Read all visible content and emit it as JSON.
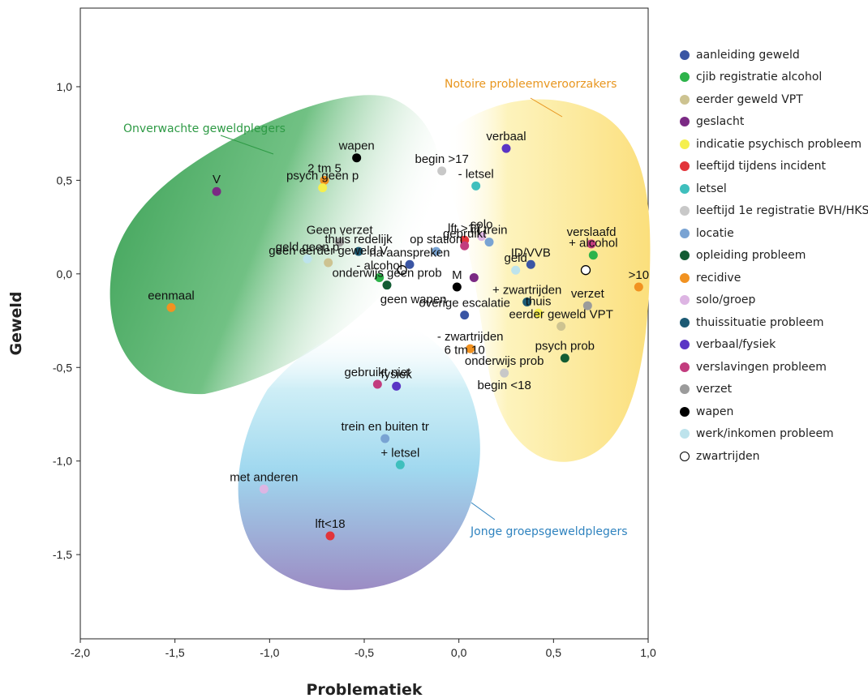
{
  "chart_data": {
    "type": "scatter",
    "xlabel": "Problematiek",
    "ylabel": "Geweld",
    "xlim": [
      -2.0,
      1.0
    ],
    "ylim": [
      -1.95,
      1.42
    ],
    "xticks": [
      -2.0,
      -1.5,
      -1.0,
      -0.5,
      0.0,
      0.5,
      1.0
    ],
    "yticks": [
      -1.5,
      -1.0,
      -0.5,
      0.0,
      0.5,
      1.0
    ],
    "xtick_labels": [
      "-2,0",
      "-1,5",
      "-1,0",
      "-0,5",
      "0,0",
      "0,5",
      "1,0"
    ],
    "ytick_labels": [
      "-1,5",
      "-1,0",
      "-0,5",
      "0,0",
      "0,5",
      "1,0"
    ],
    "grid": false,
    "legend_position": "right",
    "categories": [
      {
        "name": "aanleiding geweld",
        "color": "#3a55a4"
      },
      {
        "name": "cjib registratie alcohol",
        "color": "#2db34a"
      },
      {
        "name": "eerder geweld VPT",
        "color": "#cdc391"
      },
      {
        "name": "geslacht",
        "color": "#7b2a84"
      },
      {
        "name": "indicatie psychisch probleem",
        "color": "#f5ef4d"
      },
      {
        "name": "leeftijd tijdens incident",
        "color": "#e2343a"
      },
      {
        "name": "letsel",
        "color": "#3fbfbd"
      },
      {
        "name": "leeftijd 1e registratie BVH/HKS",
        "color": "#c8c8c8"
      },
      {
        "name": "locatie",
        "color": "#79a3d3"
      },
      {
        "name": "opleiding probleem",
        "color": "#125c33"
      },
      {
        "name": "recidive",
        "color": "#f19221"
      },
      {
        "name": "solo/groep",
        "color": "#ddb5e3"
      },
      {
        "name": "thuissituatie probleem",
        "color": "#1c5a74"
      },
      {
        "name": "verbaal/fysiek",
        "color": "#5a35c5"
      },
      {
        "name": "verslavingen probleem",
        "color": "#c23c7e"
      },
      {
        "name": "verzet",
        "color": "#9b9b9b"
      },
      {
        "name": "wapen",
        "color": "#000000"
      },
      {
        "name": "werk/inkomen probleem",
        "color": "#bde3ec"
      },
      {
        "name": "zwartrijden",
        "color": "#ffffff",
        "outline": "#000000"
      }
    ],
    "points": [
      {
        "label": "wapen",
        "x": -0.54,
        "y": 0.62,
        "cat": 16
      },
      {
        "label": "2 tm 5",
        "x": -0.71,
        "y": 0.5,
        "cat": 10
      },
      {
        "label": "V",
        "x": -1.28,
        "y": 0.44,
        "cat": 3
      },
      {
        "label": "psych geen p",
        "x": -0.72,
        "y": 0.46,
        "cat": 4
      },
      {
        "label": "begin >17",
        "x": -0.09,
        "y": 0.55,
        "cat": 7
      },
      {
        "label": "- letsel",
        "x": 0.09,
        "y": 0.47,
        "cat": 6
      },
      {
        "label": "verbaal",
        "x": 0.25,
        "y": 0.67,
        "cat": 13
      },
      {
        "label": "solo",
        "x": 0.12,
        "y": 0.2,
        "cat": 11
      },
      {
        "label": "Geen verzet",
        "x": -0.63,
        "y": 0.17,
        "cat": 15
      },
      {
        "label": "op station",
        "x": -0.12,
        "y": 0.12,
        "cat": 8
      },
      {
        "label": "lft >17",
        "x": 0.03,
        "y": 0.18,
        "cat": 5
      },
      {
        "label": "in trein",
        "x": 0.16,
        "y": 0.17,
        "cat": 8
      },
      {
        "label": "thuis redelijk",
        "x": -0.53,
        "y": 0.12,
        "cat": 12
      },
      {
        "label": "geld geen p",
        "x": -0.8,
        "y": 0.08,
        "cat": 17
      },
      {
        "label": "geen eerder geweld V",
        "x": -0.69,
        "y": 0.06,
        "cat": 2
      },
      {
        "label": "gebruikt",
        "x": 0.03,
        "y": 0.15,
        "cat": 14
      },
      {
        "label": "na aanspreken",
        "x": -0.26,
        "y": 0.05,
        "cat": 0
      },
      {
        "label": "",
        "x": -0.3,
        "y": 0.02,
        "cat": 18
      },
      {
        "label": "geld",
        "x": 0.3,
        "y": 0.02,
        "cat": 17
      },
      {
        "label": "ID/VVB",
        "x": 0.38,
        "y": 0.05,
        "cat": 0
      },
      {
        "label": "+ alcohol",
        "x": 0.71,
        "y": 0.1,
        "cat": 1
      },
      {
        "label": "verslaafd",
        "x": 0.7,
        "y": 0.16,
        "cat": 14
      },
      {
        "label": "",
        "x": 0.67,
        "y": 0.02,
        "cat": 18
      },
      {
        "label": ">10",
        "x": 0.95,
        "y": -0.07,
        "cat": 10
      },
      {
        "label": "eenmaal",
        "x": -1.52,
        "y": -0.18,
        "cat": 10
      },
      {
        "label": "- alcohol",
        "x": -0.42,
        "y": -0.02,
        "cat": 1
      },
      {
        "label": "onderwijs geen prob",
        "x": -0.38,
        "y": -0.06,
        "cat": 9
      },
      {
        "label": "M",
        "x": -0.01,
        "y": -0.07,
        "cat": 16
      },
      {
        "label": "",
        "x": 0.08,
        "y": -0.02,
        "cat": 3
      },
      {
        "label": "+ zwartrijden",
        "x": 0.36,
        "y": -0.15,
        "cat": 12
      },
      {
        "label": "thuis",
        "x": 0.42,
        "y": -0.21,
        "cat": 4
      },
      {
        "label": "verzet",
        "x": 0.68,
        "y": -0.17,
        "cat": 15
      },
      {
        "label": "overige escalatie",
        "x": 0.03,
        "y": -0.22,
        "cat": 0
      },
      {
        "label": "eerder geweld VPT",
        "x": 0.54,
        "y": -0.28,
        "cat": 2
      },
      {
        "label": "- zwartrijden",
        "x": 0.06,
        "y": -0.4,
        "cat": 10
      },
      {
        "label": "psych prob",
        "x": 0.56,
        "y": -0.45,
        "cat": 9
      },
      {
        "label": "onderwijs prob",
        "x": 0.24,
        "y": -0.53,
        "cat": 7
      },
      {
        "label": "gebruikt niet",
        "x": -0.43,
        "y": -0.59,
        "cat": 14
      },
      {
        "label": "fysiek",
        "x": -0.33,
        "y": -0.6,
        "cat": 13
      },
      {
        "label": "trein en buiten tr",
        "x": -0.39,
        "y": -0.88,
        "cat": 8
      },
      {
        "label": "+ letsel",
        "x": -0.31,
        "y": -1.02,
        "cat": 6
      },
      {
        "label": "met anderen",
        "x": -1.03,
        "y": -1.15,
        "cat": 11
      },
      {
        "label": "lft<18",
        "x": -0.68,
        "y": -1.4,
        "cat": 5
      }
    ],
    "extra_labels": [
      {
        "label": "geen wapen",
        "x": -0.24,
        "y": -0.07
      },
      {
        "label": "6 tm 10",
        "x": 0.03,
        "y": -0.34
      },
      {
        "label": "begin <18",
        "x": 0.24,
        "y": -0.53
      }
    ],
    "regions": [
      {
        "label": "Onverwachte geweldplegers",
        "color": "#2e9a45"
      },
      {
        "label": "Notoire probleemveroorzakers",
        "color": "#e8961f"
      },
      {
        "label": "Jonge groepsgeweldplegers",
        "color": "#2f83bf"
      }
    ]
  }
}
